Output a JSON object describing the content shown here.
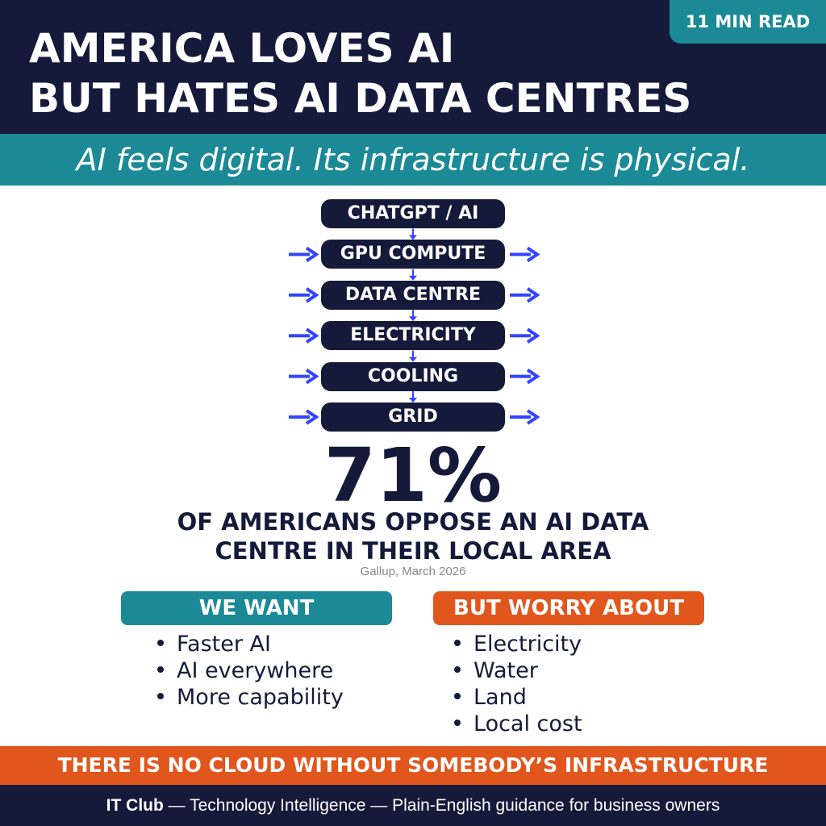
{
  "header": {
    "badge": "11 MIN READ",
    "title_lines": [
      "AMERICA LOVES AI",
      "BUT HATES AI DATA CENTRES"
    ]
  },
  "subtitle": "AI feels digital. Its infrastructure is physical.",
  "flow": {
    "steps": [
      "CHATGPT / AI",
      "GPU COMPUTE",
      "DATA CENTRE",
      "ELECTRICITY",
      "COOLING",
      "GRID"
    ]
  },
  "stat": {
    "value": "71%",
    "caption_lines": [
      "OF AMERICANS OPPOSE AN AI DATA",
      "CENTRE IN THEIR LOCAL AREA"
    ],
    "source": "Gallup, March 2026"
  },
  "columns": [
    {
      "heading": "WE WANT",
      "items": [
        "Faster AI",
        "AI everywhere",
        "More capability"
      ]
    },
    {
      "heading": "BUT WORRY ABOUT",
      "items": [
        "Electricity",
        "Water",
        "Land",
        "Local cost"
      ]
    }
  ],
  "banner": "THERE IS NO CLOUD WITHOUT SOMEBODY’S INFRASTRUCTURE",
  "footer": {
    "brand": "IT Club",
    "text": "— Technology Intelligence — Plain-English guidance for business owners"
  }
}
